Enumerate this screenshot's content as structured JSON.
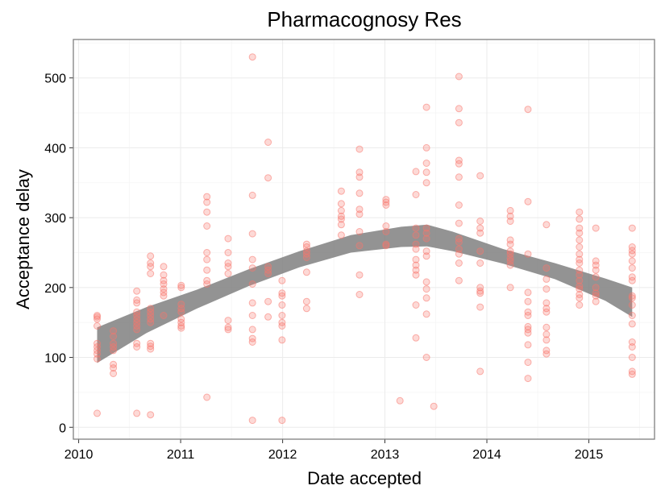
{
  "chart_data": {
    "type": "scatter",
    "title": "Pharmacognosy Res",
    "xlabel": "Date accepted",
    "ylabel": "Acceptance delay",
    "x_ticks": [
      "2010",
      "2011",
      "2012",
      "2013",
      "2014",
      "2015"
    ],
    "y_ticks": [
      0,
      100,
      200,
      300,
      400,
      500
    ],
    "xlim": [
      "2009-12-13",
      "2015-08-24"
    ],
    "ylim": [
      -17,
      555
    ],
    "grid": true,
    "legend": "none",
    "colors": {
      "points": "#f8766d",
      "smooth_band": "#808080"
    },
    "points": [
      {
        "x": "2010-03-08",
        "y": 20
      },
      {
        "x": "2010-03-08",
        "y": 98
      },
      {
        "x": "2010-03-08",
        "y": 105
      },
      {
        "x": "2010-03-08",
        "y": 110
      },
      {
        "x": "2010-03-08",
        "y": 115
      },
      {
        "x": "2010-03-08",
        "y": 120
      },
      {
        "x": "2010-03-08",
        "y": 145
      },
      {
        "x": "2010-03-08",
        "y": 155
      },
      {
        "x": "2010-03-08",
        "y": 158
      },
      {
        "x": "2010-03-08",
        "y": 160
      },
      {
        "x": "2010-05-05",
        "y": 77
      },
      {
        "x": "2010-05-05",
        "y": 85
      },
      {
        "x": "2010-05-05",
        "y": 90
      },
      {
        "x": "2010-05-05",
        "y": 110
      },
      {
        "x": "2010-05-05",
        "y": 115
      },
      {
        "x": "2010-05-05",
        "y": 120
      },
      {
        "x": "2010-05-05",
        "y": 130
      },
      {
        "x": "2010-05-05",
        "y": 138
      },
      {
        "x": "2010-07-28",
        "y": 20
      },
      {
        "x": "2010-07-28",
        "y": 115
      },
      {
        "x": "2010-07-28",
        "y": 120
      },
      {
        "x": "2010-07-28",
        "y": 140
      },
      {
        "x": "2010-07-28",
        "y": 145
      },
      {
        "x": "2010-07-28",
        "y": 150
      },
      {
        "x": "2010-07-28",
        "y": 155
      },
      {
        "x": "2010-07-28",
        "y": 160
      },
      {
        "x": "2010-07-28",
        "y": 165
      },
      {
        "x": "2010-07-28",
        "y": 178
      },
      {
        "x": "2010-07-28",
        "y": 182
      },
      {
        "x": "2010-07-28",
        "y": 195
      },
      {
        "x": "2010-09-15",
        "y": 18
      },
      {
        "x": "2010-09-15",
        "y": 112
      },
      {
        "x": "2010-09-15",
        "y": 116
      },
      {
        "x": "2010-09-15",
        "y": 120
      },
      {
        "x": "2010-09-15",
        "y": 150
      },
      {
        "x": "2010-09-15",
        "y": 155
      },
      {
        "x": "2010-09-15",
        "y": 160
      },
      {
        "x": "2010-09-15",
        "y": 165
      },
      {
        "x": "2010-09-15",
        "y": 170
      },
      {
        "x": "2010-09-15",
        "y": 220
      },
      {
        "x": "2010-09-15",
        "y": 230
      },
      {
        "x": "2010-09-15",
        "y": 235
      },
      {
        "x": "2010-09-15",
        "y": 245
      },
      {
        "x": "2010-11-01",
        "y": 160
      },
      {
        "x": "2010-11-01",
        "y": 188
      },
      {
        "x": "2010-11-01",
        "y": 193
      },
      {
        "x": "2010-11-01",
        "y": 198
      },
      {
        "x": "2010-11-01",
        "y": 205
      },
      {
        "x": "2010-11-01",
        "y": 210
      },
      {
        "x": "2010-11-01",
        "y": 218
      },
      {
        "x": "2010-11-01",
        "y": 230
      },
      {
        "x": "2011-01-03",
        "y": 142
      },
      {
        "x": "2011-01-03",
        "y": 145
      },
      {
        "x": "2011-01-03",
        "y": 150
      },
      {
        "x": "2011-01-03",
        "y": 155
      },
      {
        "x": "2011-01-03",
        "y": 165
      },
      {
        "x": "2011-01-03",
        "y": 170
      },
      {
        "x": "2011-01-03",
        "y": 176
      },
      {
        "x": "2011-01-03",
        "y": 200
      },
      {
        "x": "2011-01-03",
        "y": 203
      },
      {
        "x": "2011-04-05",
        "y": 43
      },
      {
        "x": "2011-04-05",
        "y": 205
      },
      {
        "x": "2011-04-05",
        "y": 210
      },
      {
        "x": "2011-04-05",
        "y": 225
      },
      {
        "x": "2011-04-05",
        "y": 240
      },
      {
        "x": "2011-04-05",
        "y": 250
      },
      {
        "x": "2011-04-05",
        "y": 288
      },
      {
        "x": "2011-04-05",
        "y": 308
      },
      {
        "x": "2011-04-05",
        "y": 322
      },
      {
        "x": "2011-04-05",
        "y": 330
      },
      {
        "x": "2011-06-20",
        "y": 140
      },
      {
        "x": "2011-06-20",
        "y": 143
      },
      {
        "x": "2011-06-20",
        "y": 153
      },
      {
        "x": "2011-06-20",
        "y": 220
      },
      {
        "x": "2011-06-20",
        "y": 230
      },
      {
        "x": "2011-06-20",
        "y": 235
      },
      {
        "x": "2011-06-20",
        "y": 250
      },
      {
        "x": "2011-06-20",
        "y": 270
      },
      {
        "x": "2011-09-15",
        "y": 10
      },
      {
        "x": "2011-09-15",
        "y": 122
      },
      {
        "x": "2011-09-15",
        "y": 127
      },
      {
        "x": "2011-09-15",
        "y": 140
      },
      {
        "x": "2011-09-15",
        "y": 160
      },
      {
        "x": "2011-09-15",
        "y": 178
      },
      {
        "x": "2011-09-15",
        "y": 205
      },
      {
        "x": "2011-09-15",
        "y": 228
      },
      {
        "x": "2011-09-15",
        "y": 240
      },
      {
        "x": "2011-09-15",
        "y": 277
      },
      {
        "x": "2011-09-15",
        "y": 332
      },
      {
        "x": "2011-09-15",
        "y": 530
      },
      {
        "x": "2011-11-10",
        "y": 158
      },
      {
        "x": "2011-11-10",
        "y": 180
      },
      {
        "x": "2011-11-10",
        "y": 220
      },
      {
        "x": "2011-11-10",
        "y": 225
      },
      {
        "x": "2011-11-10",
        "y": 230
      },
      {
        "x": "2011-11-10",
        "y": 357
      },
      {
        "x": "2011-11-10",
        "y": 408
      },
      {
        "x": "2011-12-30",
        "y": 10
      },
      {
        "x": "2011-12-30",
        "y": 125
      },
      {
        "x": "2011-12-30",
        "y": 145
      },
      {
        "x": "2011-12-30",
        "y": 150
      },
      {
        "x": "2011-12-30",
        "y": 160
      },
      {
        "x": "2011-12-30",
        "y": 175
      },
      {
        "x": "2011-12-30",
        "y": 188
      },
      {
        "x": "2011-12-30",
        "y": 192
      },
      {
        "x": "2011-12-30",
        "y": 210
      },
      {
        "x": "2012-03-27",
        "y": 170
      },
      {
        "x": "2012-03-27",
        "y": 180
      },
      {
        "x": "2012-03-27",
        "y": 222
      },
      {
        "x": "2012-03-27",
        "y": 243
      },
      {
        "x": "2012-03-27",
        "y": 248
      },
      {
        "x": "2012-03-27",
        "y": 252
      },
      {
        "x": "2012-03-27",
        "y": 258
      },
      {
        "x": "2012-03-27",
        "y": 262
      },
      {
        "x": "2012-07-29",
        "y": 275
      },
      {
        "x": "2012-07-29",
        "y": 290
      },
      {
        "x": "2012-07-29",
        "y": 298
      },
      {
        "x": "2012-07-29",
        "y": 302
      },
      {
        "x": "2012-07-29",
        "y": 310
      },
      {
        "x": "2012-07-29",
        "y": 320
      },
      {
        "x": "2012-07-29",
        "y": 338
      },
      {
        "x": "2012-10-02",
        "y": 190
      },
      {
        "x": "2012-10-02",
        "y": 218
      },
      {
        "x": "2012-10-02",
        "y": 260
      },
      {
        "x": "2012-10-02",
        "y": 280
      },
      {
        "x": "2012-10-02",
        "y": 305
      },
      {
        "x": "2012-10-02",
        "y": 312
      },
      {
        "x": "2012-10-02",
        "y": 335
      },
      {
        "x": "2012-10-02",
        "y": 358
      },
      {
        "x": "2012-10-02",
        "y": 365
      },
      {
        "x": "2012-10-02",
        "y": 398
      },
      {
        "x": "2013-01-05",
        "y": 260
      },
      {
        "x": "2013-01-05",
        "y": 262
      },
      {
        "x": "2013-01-05",
        "y": 280
      },
      {
        "x": "2013-01-05",
        "y": 288
      },
      {
        "x": "2013-01-05",
        "y": 318
      },
      {
        "x": "2013-01-05",
        "y": 322
      },
      {
        "x": "2013-01-05",
        "y": 326
      },
      {
        "x": "2013-02-24",
        "y": 38
      },
      {
        "x": "2013-04-22",
        "y": 128
      },
      {
        "x": "2013-04-22",
        "y": 175
      },
      {
        "x": "2013-04-22",
        "y": 218
      },
      {
        "x": "2013-04-22",
        "y": 225
      },
      {
        "x": "2013-04-22",
        "y": 232
      },
      {
        "x": "2013-04-22",
        "y": 240
      },
      {
        "x": "2013-04-22",
        "y": 255
      },
      {
        "x": "2013-04-22",
        "y": 262
      },
      {
        "x": "2013-04-22",
        "y": 275
      },
      {
        "x": "2013-04-22",
        "y": 285
      },
      {
        "x": "2013-04-22",
        "y": 333
      },
      {
        "x": "2013-04-22",
        "y": 366
      },
      {
        "x": "2013-05-30",
        "y": 100
      },
      {
        "x": "2013-05-30",
        "y": 162
      },
      {
        "x": "2013-05-30",
        "y": 185
      },
      {
        "x": "2013-05-30",
        "y": 198
      },
      {
        "x": "2013-05-30",
        "y": 208
      },
      {
        "x": "2013-05-30",
        "y": 245
      },
      {
        "x": "2013-05-30",
        "y": 252
      },
      {
        "x": "2013-05-30",
        "y": 270
      },
      {
        "x": "2013-05-30",
        "y": 278
      },
      {
        "x": "2013-05-30",
        "y": 285
      },
      {
        "x": "2013-05-30",
        "y": 350
      },
      {
        "x": "2013-05-30",
        "y": 365
      },
      {
        "x": "2013-05-30",
        "y": 378
      },
      {
        "x": "2013-05-30",
        "y": 400
      },
      {
        "x": "2013-05-30",
        "y": 458
      },
      {
        "x": "2013-06-25",
        "y": 30
      },
      {
        "x": "2013-09-23",
        "y": 210
      },
      {
        "x": "2013-09-23",
        "y": 235
      },
      {
        "x": "2013-09-23",
        "y": 248
      },
      {
        "x": "2013-09-23",
        "y": 255
      },
      {
        "x": "2013-09-23",
        "y": 265
      },
      {
        "x": "2013-09-23",
        "y": 270
      },
      {
        "x": "2013-09-23",
        "y": 292
      },
      {
        "x": "2013-09-23",
        "y": 318
      },
      {
        "x": "2013-09-23",
        "y": 358
      },
      {
        "x": "2013-09-23",
        "y": 377
      },
      {
        "x": "2013-09-23",
        "y": 382
      },
      {
        "x": "2013-09-23",
        "y": 436
      },
      {
        "x": "2013-09-23",
        "y": 456
      },
      {
        "x": "2013-09-23",
        "y": 502
      },
      {
        "x": "2013-12-08",
        "y": 80
      },
      {
        "x": "2013-12-08",
        "y": 172
      },
      {
        "x": "2013-12-08",
        "y": 192
      },
      {
        "x": "2013-12-08",
        "y": 195
      },
      {
        "x": "2013-12-08",
        "y": 200
      },
      {
        "x": "2013-12-08",
        "y": 235
      },
      {
        "x": "2013-12-08",
        "y": 252
      },
      {
        "x": "2013-12-08",
        "y": 278
      },
      {
        "x": "2013-12-08",
        "y": 285
      },
      {
        "x": "2013-12-08",
        "y": 295
      },
      {
        "x": "2013-12-08",
        "y": 360
      },
      {
        "x": "2014-03-26",
        "y": 200
      },
      {
        "x": "2014-03-26",
        "y": 232
      },
      {
        "x": "2014-03-26",
        "y": 238
      },
      {
        "x": "2014-03-26",
        "y": 242
      },
      {
        "x": "2014-03-26",
        "y": 248
      },
      {
        "x": "2014-03-26",
        "y": 252
      },
      {
        "x": "2014-03-26",
        "y": 262
      },
      {
        "x": "2014-03-26",
        "y": 268
      },
      {
        "x": "2014-03-26",
        "y": 295
      },
      {
        "x": "2014-03-26",
        "y": 302
      },
      {
        "x": "2014-03-26",
        "y": 310
      },
      {
        "x": "2014-05-28",
        "y": 70
      },
      {
        "x": "2014-05-28",
        "y": 93
      },
      {
        "x": "2014-05-28",
        "y": 118
      },
      {
        "x": "2014-05-28",
        "y": 135
      },
      {
        "x": "2014-05-28",
        "y": 140
      },
      {
        "x": "2014-05-28",
        "y": 144
      },
      {
        "x": "2014-05-28",
        "y": 160
      },
      {
        "x": "2014-05-28",
        "y": 165
      },
      {
        "x": "2014-05-28",
        "y": 180
      },
      {
        "x": "2014-05-28",
        "y": 193
      },
      {
        "x": "2014-05-28",
        "y": 248
      },
      {
        "x": "2014-05-28",
        "y": 323
      },
      {
        "x": "2014-05-28",
        "y": 455
      },
      {
        "x": "2014-08-02",
        "y": 105
      },
      {
        "x": "2014-08-02",
        "y": 110
      },
      {
        "x": "2014-08-02",
        "y": 125
      },
      {
        "x": "2014-08-02",
        "y": 133
      },
      {
        "x": "2014-08-02",
        "y": 143
      },
      {
        "x": "2014-08-02",
        "y": 165
      },
      {
        "x": "2014-08-02",
        "y": 170
      },
      {
        "x": "2014-08-02",
        "y": 178
      },
      {
        "x": "2014-08-02",
        "y": 198
      },
      {
        "x": "2014-08-02",
        "y": 212
      },
      {
        "x": "2014-08-02",
        "y": 228
      },
      {
        "x": "2014-08-02",
        "y": 290
      },
      {
        "x": "2014-11-28",
        "y": 175
      },
      {
        "x": "2014-11-28",
        "y": 185
      },
      {
        "x": "2014-11-28",
        "y": 190
      },
      {
        "x": "2014-11-28",
        "y": 198
      },
      {
        "x": "2014-11-28",
        "y": 202
      },
      {
        "x": "2014-11-28",
        "y": 210
      },
      {
        "x": "2014-11-28",
        "y": 218
      },
      {
        "x": "2014-11-28",
        "y": 225
      },
      {
        "x": "2014-11-28",
        "y": 235
      },
      {
        "x": "2014-11-28",
        "y": 240
      },
      {
        "x": "2014-11-28",
        "y": 248
      },
      {
        "x": "2014-11-28",
        "y": 258
      },
      {
        "x": "2014-11-28",
        "y": 268
      },
      {
        "x": "2014-11-28",
        "y": 278
      },
      {
        "x": "2014-11-28",
        "y": 285
      },
      {
        "x": "2014-11-28",
        "y": 298
      },
      {
        "x": "2014-11-28",
        "y": 308
      },
      {
        "x": "2015-01-26",
        "y": 180
      },
      {
        "x": "2015-01-26",
        "y": 188
      },
      {
        "x": "2015-01-26",
        "y": 192
      },
      {
        "x": "2015-01-26",
        "y": 200
      },
      {
        "x": "2015-01-26",
        "y": 215
      },
      {
        "x": "2015-01-26",
        "y": 225
      },
      {
        "x": "2015-01-26",
        "y": 232
      },
      {
        "x": "2015-01-26",
        "y": 238
      },
      {
        "x": "2015-01-26",
        "y": 285
      },
      {
        "x": "2015-06-05",
        "y": 76
      },
      {
        "x": "2015-06-05",
        "y": 80
      },
      {
        "x": "2015-06-05",
        "y": 100
      },
      {
        "x": "2015-06-05",
        "y": 115
      },
      {
        "x": "2015-06-05",
        "y": 122
      },
      {
        "x": "2015-06-05",
        "y": 148
      },
      {
        "x": "2015-06-05",
        "y": 160
      },
      {
        "x": "2015-06-05",
        "y": 175
      },
      {
        "x": "2015-06-05",
        "y": 185
      },
      {
        "x": "2015-06-05",
        "y": 188
      },
      {
        "x": "2015-06-05",
        "y": 210
      },
      {
        "x": "2015-06-05",
        "y": 215
      },
      {
        "x": "2015-06-05",
        "y": 228
      },
      {
        "x": "2015-06-05",
        "y": 238
      },
      {
        "x": "2015-06-05",
        "y": 248
      },
      {
        "x": "2015-06-05",
        "y": 253
      },
      {
        "x": "2015-06-05",
        "y": 258
      },
      {
        "x": "2015-06-05",
        "y": 285
      }
    ],
    "smooth_band": [
      {
        "x": "2010-03-08",
        "lower": 92,
        "upper": 143
      },
      {
        "x": "2010-09-01",
        "lower": 135,
        "upper": 172
      },
      {
        "x": "2011-03-01",
        "lower": 170,
        "upper": 197
      },
      {
        "x": "2011-09-01",
        "lower": 202,
        "upper": 226
      },
      {
        "x": "2012-03-01",
        "lower": 229,
        "upper": 252
      },
      {
        "x": "2012-09-01",
        "lower": 250,
        "upper": 275
      },
      {
        "x": "2013-03-01",
        "lower": 258,
        "upper": 287
      },
      {
        "x": "2013-06-01",
        "lower": 259,
        "upper": 290
      },
      {
        "x": "2013-09-01",
        "lower": 252,
        "upper": 280
      },
      {
        "x": "2014-03-01",
        "lower": 234,
        "upper": 255
      },
      {
        "x": "2014-09-01",
        "lower": 212,
        "upper": 235
      },
      {
        "x": "2015-03-01",
        "lower": 181,
        "upper": 213
      },
      {
        "x": "2015-06-05",
        "lower": 158,
        "upper": 200
      }
    ]
  }
}
